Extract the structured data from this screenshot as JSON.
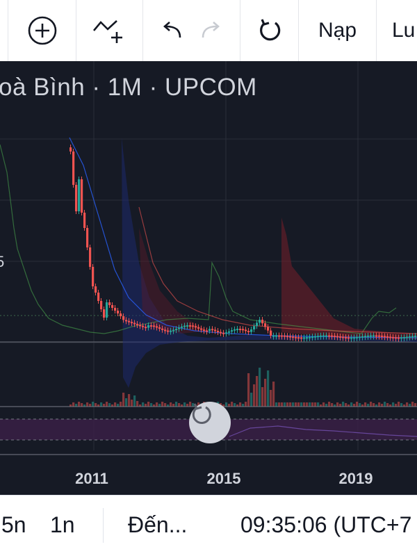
{
  "toolbar": {
    "items": [
      {
        "name": "add-indicator-button",
        "icon": "plus-circle-icon"
      },
      {
        "name": "indicators-button",
        "icon": "line-plus-icon"
      },
      {
        "name": "undo-button",
        "icon": "undo-icon"
      },
      {
        "name": "redo-button",
        "icon": "redo-icon"
      },
      {
        "name": "refresh-button",
        "icon": "refresh-icon"
      }
    ],
    "load_label": "Nạp",
    "save_label": "Lu"
  },
  "chart": {
    "symbol_title": "oà Bình · 1M · UPCOM",
    "x_ticks": [
      "2011",
      "2015",
      "2019"
    ],
    "colors": {
      "up": "#26a69a",
      "down": "#ef5350",
      "background": "#161a25",
      "grid": "#2a2e39",
      "text": "#d1d4dc"
    },
    "left_edge_label": "5"
  },
  "chart_data": {
    "type": "candlestick",
    "title": "",
    "x_ticks": [
      "2011",
      "2015",
      "2019"
    ],
    "series": [
      {
        "name": "",
        "kind": "price",
        "values_desc": "sharp decline from peak in 2010 to a low flat range from 2012 onward"
      }
    ],
    "volume_visible": true,
    "grid": true
  },
  "bottom_bar": {
    "range_5y": "5n",
    "range_1y": "1n",
    "goto_label": "Đến...",
    "clock": "09:35:06 (UTC+7"
  }
}
